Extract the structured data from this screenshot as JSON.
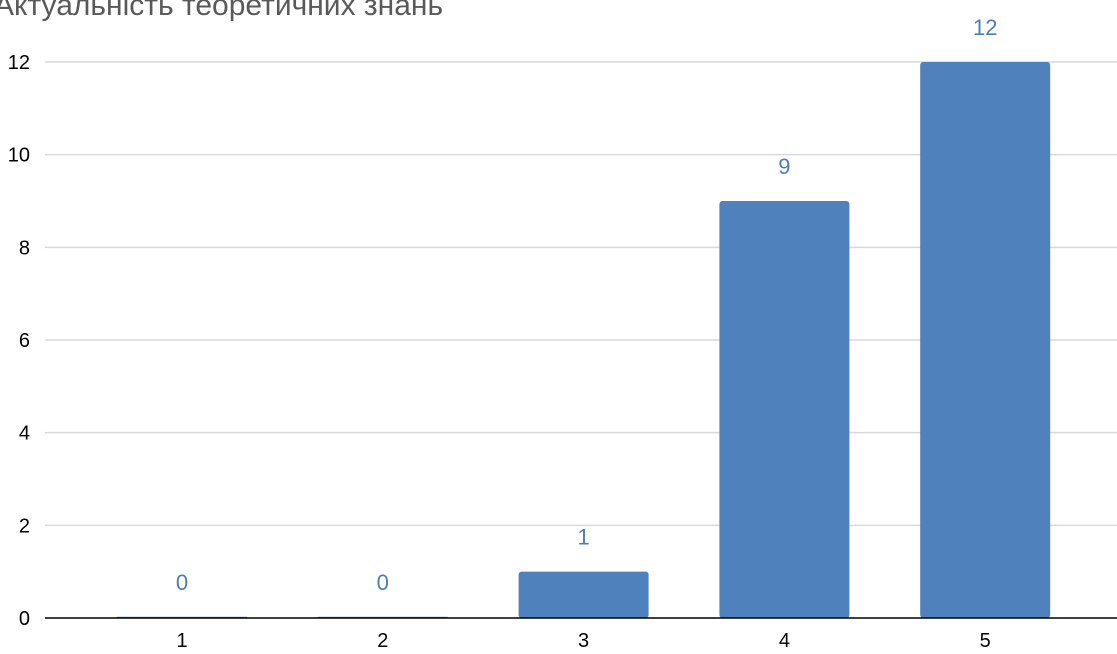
{
  "chart_data": {
    "type": "bar",
    "title": "Актуальність теоретичних знань",
    "categories": [
      "1",
      "2",
      "3",
      "4",
      "5"
    ],
    "values": [
      0,
      0,
      1,
      9,
      12
    ],
    "ylim": [
      0,
      12
    ],
    "yticks": [
      0,
      2,
      4,
      6,
      8,
      10,
      12
    ],
    "xlabel": "",
    "ylabel": "",
    "grid": true,
    "legend": "none",
    "data_labels": [
      "0",
      "0",
      "1",
      "9",
      "12"
    ],
    "colors": {
      "bar": "#4f81bd",
      "data_label": "#4a7ebb",
      "title": "#595959",
      "grid": "#d9d9d9",
      "axis": "#000000"
    }
  }
}
